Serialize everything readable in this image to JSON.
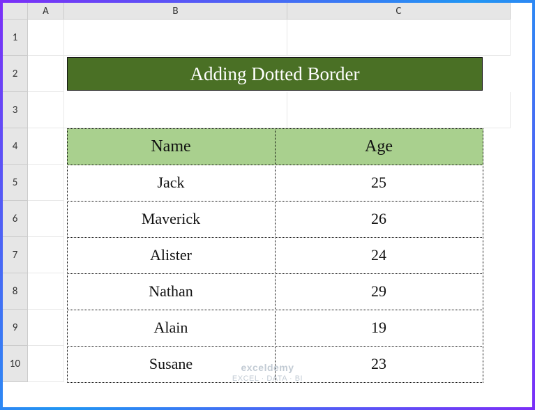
{
  "columns": [
    "A",
    "B",
    "C"
  ],
  "rows": [
    "1",
    "2",
    "3",
    "4",
    "5",
    "6",
    "7",
    "8",
    "9",
    "10"
  ],
  "title": "Adding Dotted Border",
  "colors": {
    "title_bg": "#4a7025",
    "title_fg": "#ffffff",
    "header_bg": "#a9d08e",
    "frame_gradient_start": "#7b2ff7",
    "frame_gradient_end": "#2196f3",
    "dotted_border": "#000000"
  },
  "typography": {
    "title_fontsize": 27,
    "header_fontsize": 24,
    "data_fontsize": 22,
    "font_family": "Comic Sans MS"
  },
  "table": {
    "type": "table",
    "headers": [
      "Name",
      "Age"
    ],
    "rows": [
      [
        "Jack",
        "25"
      ],
      [
        "Maverick",
        "26"
      ],
      [
        "Alister",
        "24"
      ],
      [
        "Nathan",
        "29"
      ],
      [
        "Alain",
        "19"
      ],
      [
        "Susane",
        "23"
      ]
    ],
    "border_style": "dotted"
  },
  "watermark": {
    "brand": "exceldemy",
    "tagline": "EXCEL · DATA · BI"
  }
}
